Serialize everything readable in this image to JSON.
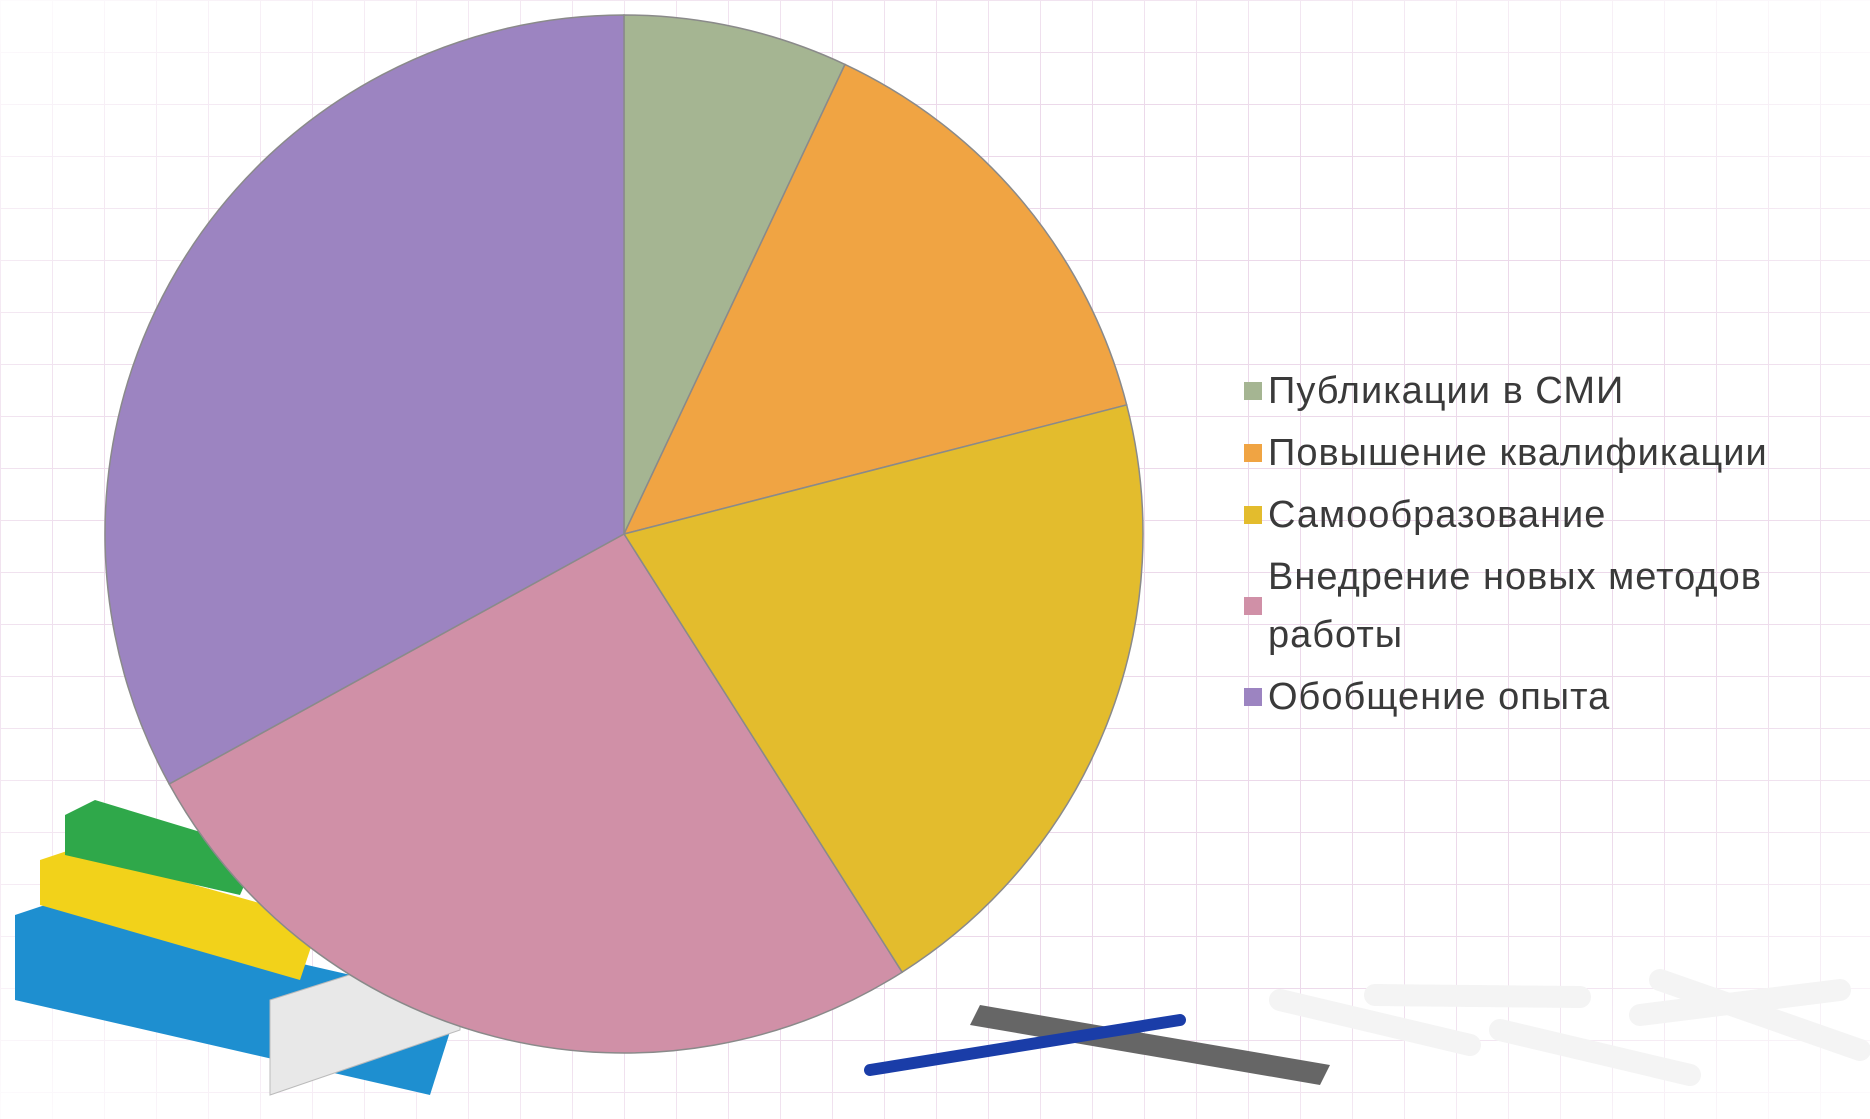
{
  "chart_data": {
    "type": "pie",
    "categories": [
      "Публикации в СМИ",
      "Повышение квалификации",
      "Самообразование",
      "Внедрение новых методов работы",
      "Обобщение опыта"
    ],
    "values": [
      7,
      14,
      20,
      26,
      33
    ],
    "colors": [
      "#a5b592",
      "#f0a443",
      "#e3bc2d",
      "#d090a7",
      "#9c84c1"
    ],
    "legend": "right"
  }
}
